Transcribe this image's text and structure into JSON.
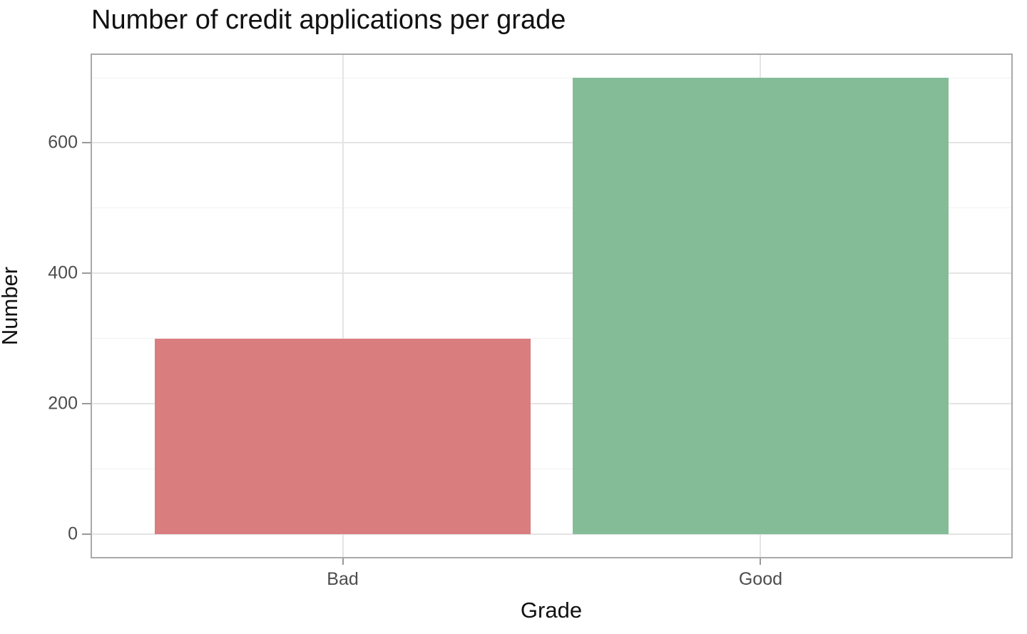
{
  "title": "Number of credit applications per grade",
  "chart_data": {
    "type": "bar",
    "title": "Number of credit applications per grade",
    "categories": [
      "Bad",
      "Good"
    ],
    "values": [
      300,
      700
    ],
    "bar_colors": [
      "#d97d7f",
      "#85bc98"
    ],
    "xlabel": "Grade",
    "ylabel": "Number",
    "ylim": [
      -35,
      735
    ],
    "yticks": [
      0,
      200,
      400,
      600
    ],
    "yminor_ticks": [
      100,
      300,
      500,
      700
    ],
    "legend": "none",
    "grid": "major and minor horizontal, major vertical at category centers",
    "style": {
      "panel_border_color": "#a9a9a9",
      "grid_major_color": "#e4e4e4",
      "grid_minor_color": "#f0f0f0",
      "axis_tick_color": "#999999",
      "axis_text_color": "#4d4d4d",
      "title_color": "#111111",
      "background_color": "#ffffff"
    }
  }
}
